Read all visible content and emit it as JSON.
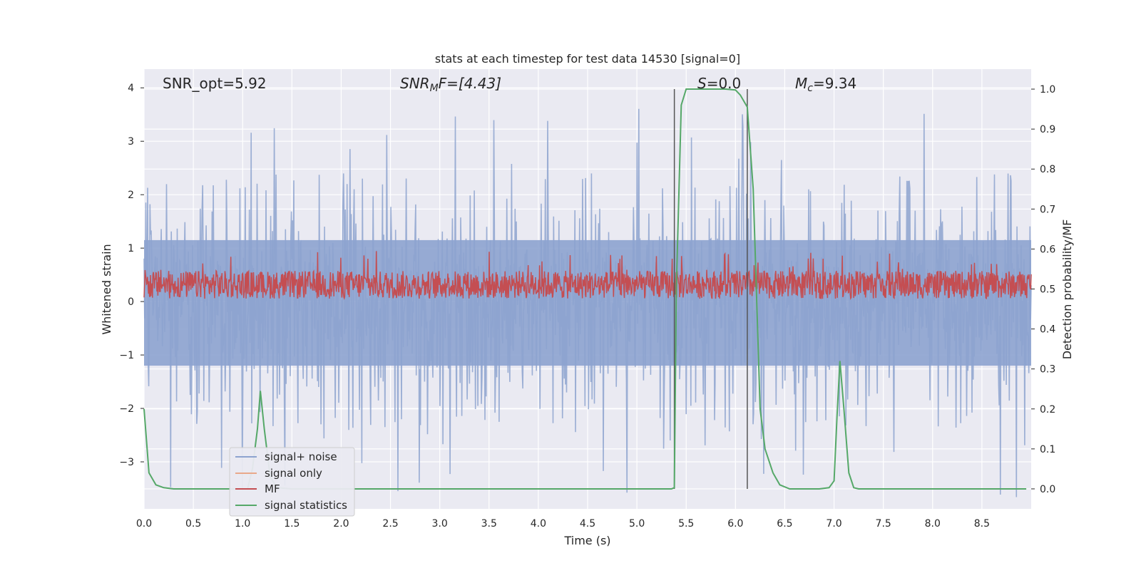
{
  "chart_data": {
    "type": "line",
    "title": "stats at each timestep for test data 14530 [signal=0]",
    "xlabel": "Time (s)",
    "ylabel_left": "Whitened strain",
    "ylabel_right": "Detection probability/MF",
    "xlim": [
      0.0,
      9.0
    ],
    "ylim_left": [
      -3.88,
      4.35
    ],
    "ylim_right": [
      -0.05,
      1.05
    ],
    "xticks": [
      "0.0",
      "0.5",
      "1.0",
      "1.5",
      "2.0",
      "2.5",
      "3.0",
      "3.5",
      "4.0",
      "4.5",
      "5.0",
      "5.5",
      "6.0",
      "6.5",
      "7.0",
      "7.5",
      "8.0",
      "8.5"
    ],
    "yticks_left": [
      "4",
      "3",
      "2",
      "1",
      "0",
      "−1",
      "−2",
      "−3"
    ],
    "yticks_right": [
      "1.0",
      "0.9",
      "0.8",
      "0.7",
      "0.6",
      "0.5",
      "0.4",
      "0.3",
      "0.2",
      "0.1",
      "0.0"
    ],
    "grid": true,
    "legend_position": "lower-left",
    "annotations": {
      "snr_opt": "SNR_opt=5.92",
      "snr_mf_main": "SNR",
      "snr_mf_sub": "M",
      "snr_mf_rest": "F=[4.43]",
      "s_main": "S",
      "s_rest": "=0.0",
      "mc_main": "M",
      "mc_sub": "c",
      "mc_rest": "=9.34"
    },
    "vertical_lines_x": [
      5.38,
      6.12
    ],
    "series": [
      {
        "name": "signal+ noise",
        "color": "#8da3cf",
        "axis": "left",
        "description_level": "noise band roughly ±1.2 with spikes up to ~3.8"
      },
      {
        "name": "signal only",
        "color": "#e9a88a",
        "axis": "left",
        "values": []
      },
      {
        "name": "MF",
        "color": "#c44e52",
        "axis": "right"
      },
      {
        "name": "signal statistics",
        "color": "#55a868",
        "axis": "right",
        "x": [
          0.0,
          0.05,
          0.12,
          0.2,
          0.3,
          0.5,
          0.9,
          1.05,
          1.1,
          1.15,
          1.18,
          1.22,
          1.28,
          1.35,
          1.5,
          2.0,
          3.0,
          4.0,
          5.0,
          5.35,
          5.38,
          5.4,
          5.45,
          5.5,
          5.6,
          5.7,
          5.8,
          5.9,
          6.0,
          6.05,
          6.12,
          6.18,
          6.25,
          6.3,
          6.38,
          6.45,
          6.55,
          6.7,
          6.85,
          6.95,
          7.0,
          7.03,
          7.06,
          7.1,
          7.15,
          7.2,
          7.25,
          7.4,
          8.0,
          8.5,
          8.95
        ],
        "y": [
          0.2,
          0.04,
          0.01,
          0.003,
          0.0,
          0.0,
          0.0,
          0.0,
          0.05,
          0.15,
          0.245,
          0.15,
          0.03,
          0.003,
          0.0,
          0.0,
          0.0,
          0.0,
          0.0,
          0.0,
          0.003,
          0.5,
          0.96,
          1.0,
          1.0,
          1.0,
          1.0,
          1.0,
          0.998,
          0.985,
          0.955,
          0.75,
          0.2,
          0.1,
          0.04,
          0.01,
          0.0,
          0.0,
          0.0,
          0.003,
          0.02,
          0.18,
          0.32,
          0.2,
          0.04,
          0.003,
          0.0,
          0.0,
          0.0,
          0.0,
          0.0
        ]
      }
    ]
  }
}
